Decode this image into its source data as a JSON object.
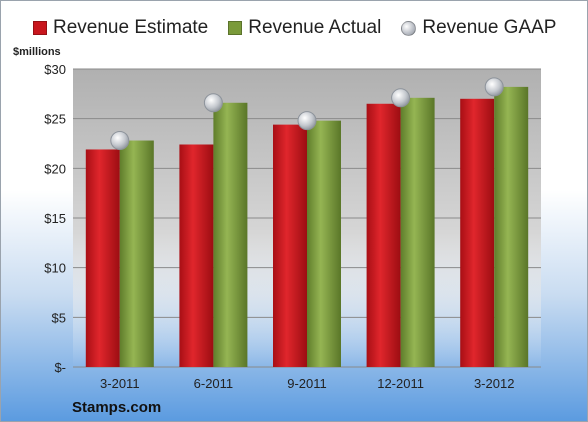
{
  "chart_data": {
    "type": "bar",
    "categories": [
      "3-2011",
      "6-2011",
      "9-2011",
      "12-2011",
      "3-2012"
    ],
    "series": [
      {
        "name": "Revenue Estimate",
        "kind": "bar",
        "color": "#c8161d",
        "values": [
          21.9,
          22.4,
          24.4,
          26.5,
          27.0
        ]
      },
      {
        "name": "Revenue Actual",
        "kind": "bar",
        "color": "#7a9a3a",
        "values": [
          22.8,
          26.6,
          24.8,
          27.1,
          28.2
        ]
      },
      {
        "name": "Revenue GAAP",
        "kind": "marker",
        "color": "#b8bcc4",
        "values": [
          22.8,
          26.6,
          24.8,
          27.1,
          28.2
        ]
      }
    ],
    "ylabel": "$millions",
    "ylim": [
      0,
      30
    ],
    "yticks": [
      0,
      5,
      10,
      15,
      20,
      25,
      30
    ],
    "ytick_labels": [
      "$-",
      "$5",
      "$10",
      "$15",
      "$20",
      "$25",
      "$30"
    ],
    "grid": true,
    "legend_position": "top"
  },
  "source": "Stamps.com"
}
